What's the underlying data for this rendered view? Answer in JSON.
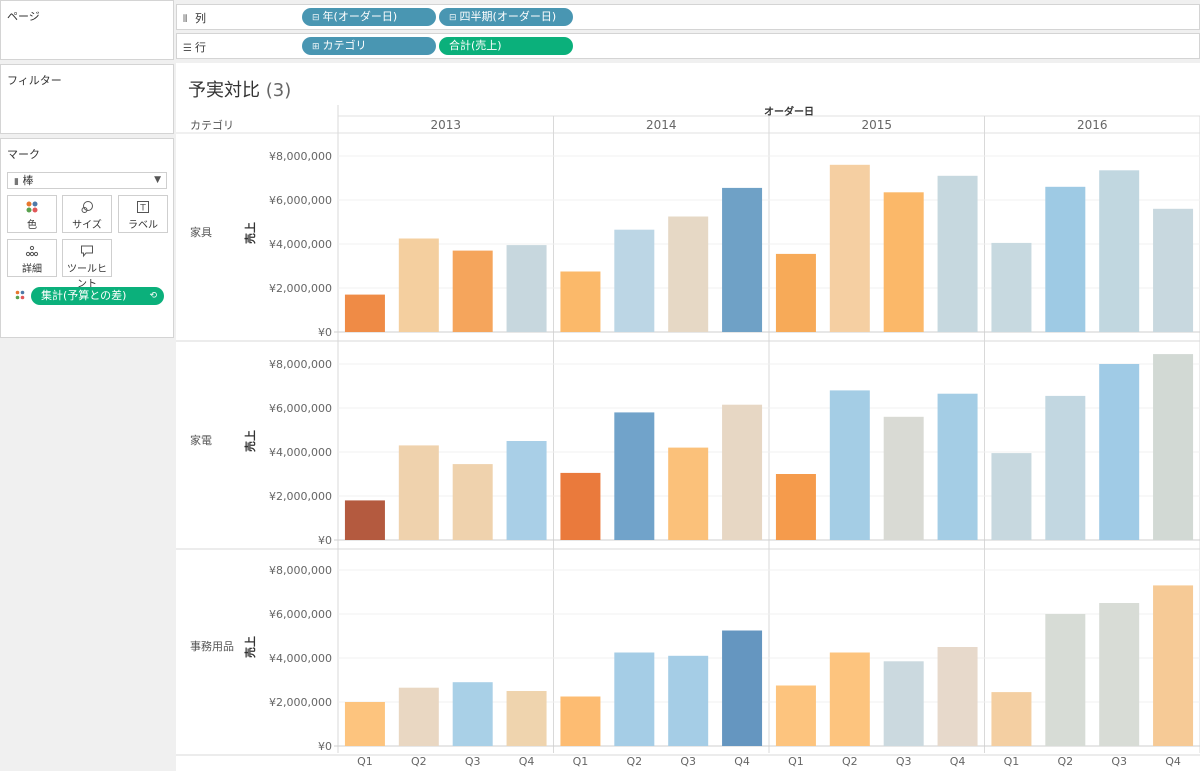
{
  "sidebar": {
    "pages_label": "ページ",
    "filters_label": "フィルター",
    "marks_label": "マーク",
    "mark_type": "棒",
    "buttons": [
      {
        "label": "色",
        "icon": "color-dots-icon"
      },
      {
        "label": "サイズ",
        "icon": "size-icon"
      },
      {
        "label": "ラベル",
        "icon": "label-icon"
      },
      {
        "label": "詳細",
        "icon": "detail-icon"
      },
      {
        "label": "ツールヒント",
        "icon": "tooltip-icon"
      }
    ],
    "color_field": "集計(予算との差)"
  },
  "shelves": {
    "columns_label": "列",
    "rows_label": "行",
    "columns_pills": [
      "年(オーダー日)",
      "四半期(オーダー日)"
    ],
    "rows_pills": [
      "カテゴリ",
      "合計(売上)"
    ]
  },
  "view": {
    "title": "予実対比",
    "count": "(3)"
  },
  "chart_data": {
    "type": "bar",
    "column_header": "オーダー日",
    "row_header": "カテゴリ",
    "ylabel": "売上",
    "ylim": [
      0,
      8500000
    ],
    "y_ticks": [
      0,
      2000000,
      4000000,
      6000000,
      8000000
    ],
    "y_tick_labels": [
      "¥0",
      "¥2,000,000",
      "¥4,000,000",
      "¥6,000,000",
      "¥8,000,000"
    ],
    "years": [
      "2013",
      "2014",
      "2015",
      "2016"
    ],
    "quarters": [
      "Q1",
      "Q2",
      "Q3",
      "Q4"
    ],
    "rows": [
      {
        "category": "家具",
        "values": [
          [
            1700000,
            4250000,
            3700000,
            3950000
          ],
          [
            2750000,
            4650000,
            5250000,
            6550000
          ],
          [
            3550000,
            7600000,
            6350000,
            7100000
          ],
          [
            4050000,
            6600000,
            7350000,
            5600000
          ]
        ],
        "colors": [
          [
            "#ef8b46",
            "#f4cf9f",
            "#f5a55c",
            "#c7d7de"
          ],
          [
            "#fbb96a",
            "#bcd6e5",
            "#e6d8c5",
            "#6fa1c6"
          ],
          [
            "#f7aa58",
            "#f5cfa2",
            "#fbb869",
            "#c6d8df"
          ],
          [
            "#c7d9e0",
            "#9ecae4",
            "#c1d7e0",
            "#c8d8df"
          ]
        ]
      },
      {
        "category": "家電",
        "values": [
          [
            1800000,
            4300000,
            3450000,
            4500000
          ],
          [
            3050000,
            5800000,
            4200000,
            6150000
          ],
          [
            3000000,
            6800000,
            5600000,
            6650000
          ],
          [
            3950000,
            6550000,
            8000000,
            8450000
          ]
        ],
        "colors": [
          [
            "#b45a3f",
            "#efd2ad",
            "#efd2ad",
            "#a9cfe7"
          ],
          [
            "#ea7a3c",
            "#71a3ca",
            "#fbc17a",
            "#e7d7c4"
          ],
          [
            "#f59b4c",
            "#a4cde5",
            "#d9dad4",
            "#a4cde5"
          ],
          [
            "#c7d8df",
            "#c2d7e1",
            "#a0cbe6",
            "#d2d9d4"
          ]
        ]
      },
      {
        "category": "事務用品",
        "values": [
          [
            2000000,
            2650000,
            2900000,
            2500000
          ],
          [
            2250000,
            4250000,
            4100000,
            5250000
          ],
          [
            2750000,
            4250000,
            3850000,
            4500000
          ],
          [
            2450000,
            6000000,
            6500000,
            7300000
          ]
        ],
        "colors": [
          [
            "#fdc47e",
            "#e9d7c2",
            "#a9d0e7",
            "#efd4ae"
          ],
          [
            "#fdbc72",
            "#a5cde6",
            "#a5cde6",
            "#6596c0"
          ],
          [
            "#fdc47e",
            "#fdc47e",
            "#cbd9df",
            "#e7d9cb"
          ],
          [
            "#f4cfa2",
            "#d7dcd6",
            "#d8dcd6",
            "#f6ca96"
          ]
        ]
      }
    ]
  }
}
